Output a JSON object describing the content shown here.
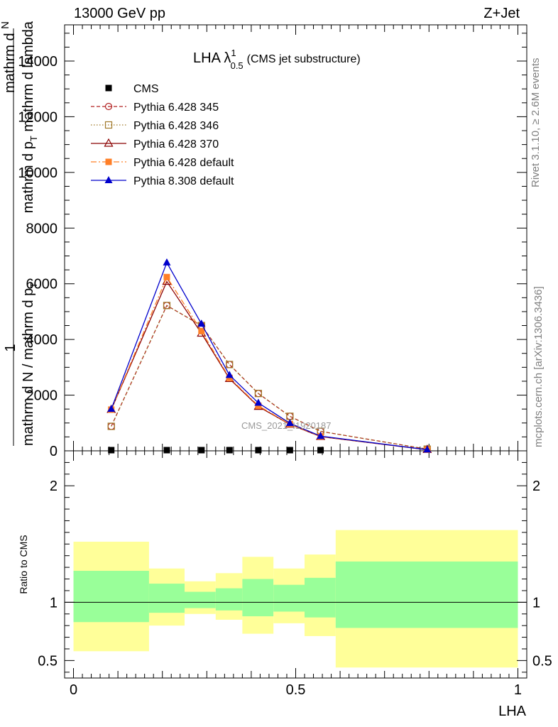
{
  "header": {
    "energy_label": "13000 GeV pp",
    "process_label": "Z+Jet"
  },
  "side": {
    "rivet_label": "Rivet 3.1.10, ≥ 2.6M events",
    "mcplots_label": "mcplots.cern.ch [arXiv:1306.3436]"
  },
  "watermark": "CMS_2021_I1920187",
  "colors": {
    "band_inner": "#99ff99",
    "band_outer": "#ffff99",
    "cms": "#000000",
    "p345": "#b22222",
    "p346": "#a07828",
    "p370": "#8b0000",
    "p6def": "#ff7f27",
    "p8def": "#0000cc"
  },
  "chart_data": {
    "type": "line",
    "title": "LHA λ",
    "title_sup": "1",
    "title_sub": "0.5",
    "title_suffix": "(CMS jet substructure)",
    "xlabel": "LHA",
    "ylabel_top_line1": "mathrm d",
    "ylabel_top_line2": "N",
    "ylabel_top_line3": "mathrm d p",
    "ylabel_top_line4": "T",
    "ylabel_top_line5": "mathrm d lambda",
    "ylabel_bottom": "mathrm d N / mathrm d p",
    "ylabel_bottom_sub": "T",
    "ylabel_one": "1",
    "ratio_ylabel": "Ratio to CMS",
    "xlim": [
      -0.02,
      1.02
    ],
    "ylim": [
      0,
      15300
    ],
    "ratio_ylim": [
      0.35,
      2.3
    ],
    "x_ticks": [
      {
        "v": 0,
        "label": "0"
      },
      {
        "v": 0.5,
        "label": "0.5"
      },
      {
        "v": 1,
        "label": "1"
      }
    ],
    "y_ticks": [
      {
        "v": 0,
        "label": "0"
      },
      {
        "v": 2000,
        "label": "2000"
      },
      {
        "v": 4000,
        "label": "4000"
      },
      {
        "v": 6000,
        "label": "6000"
      },
      {
        "v": 8000,
        "label": "8000"
      },
      {
        "v": 10000,
        "label": "10000"
      },
      {
        "v": 12000,
        "label": "12000"
      },
      {
        "v": 14000,
        "label": "14000"
      }
    ],
    "ratio_ticks": [
      {
        "v": 0.5,
        "label": "0.5"
      },
      {
        "v": 1,
        "label": "1"
      },
      {
        "v": 2,
        "label": "2"
      }
    ],
    "x": [
      0.085,
      0.21,
      0.288,
      0.351,
      0.416,
      0.487,
      0.556,
      0.796
    ],
    "bin_edges": [
      0,
      0.17,
      0.25,
      0.32,
      0.38,
      0.45,
      0.52,
      0.59,
      1.0
    ],
    "series": [
      {
        "name": "CMS",
        "key": "cms",
        "style": "cms",
        "values": [
          25,
          25,
          25,
          25,
          25,
          25,
          25,
          10
        ]
      },
      {
        "name": "Pythia 6.428 345",
        "key": "p345",
        "style": "circle-dashed",
        "values": [
          880,
          5220,
          4500,
          3100,
          2060,
          1240,
          700,
          60
        ]
      },
      {
        "name": "Pythia 6.428 346",
        "key": "p346",
        "style": "square-dotted",
        "values": [
          880,
          5220,
          4500,
          3100,
          2060,
          1240,
          700,
          60
        ]
      },
      {
        "name": "Pythia 6.428 370",
        "key": "p370",
        "style": "triangle-open",
        "values": [
          1480,
          6080,
          4220,
          2590,
          1590,
          950,
          510,
          40
        ]
      },
      {
        "name": "Pythia 6.428 default",
        "key": "p6def",
        "style": "square-dashdot",
        "values": [
          1480,
          6240,
          4300,
          2620,
          1620,
          960,
          520,
          40
        ]
      },
      {
        "name": "Pythia 8.308 default",
        "key": "p8def",
        "style": "triangle-filled",
        "values": [
          1500,
          6760,
          4560,
          2720,
          1720,
          990,
          530,
          40
        ]
      }
    ],
    "ratio_bands": [
      {
        "lo": 0.0,
        "hi": 0.17,
        "inner": [
          0.83,
          1.27
        ],
        "outer": [
          0.58,
          1.52
        ]
      },
      {
        "lo": 0.17,
        "hi": 0.25,
        "inner": [
          0.91,
          1.16
        ],
        "outer": [
          0.8,
          1.29
        ]
      },
      {
        "lo": 0.25,
        "hi": 0.32,
        "inner": [
          0.95,
          1.09
        ],
        "outer": [
          0.9,
          1.18
        ]
      },
      {
        "lo": 0.32,
        "hi": 0.38,
        "inner": [
          0.93,
          1.12
        ],
        "outer": [
          0.85,
          1.25
        ]
      },
      {
        "lo": 0.38,
        "hi": 0.45,
        "inner": [
          0.88,
          1.2
        ],
        "outer": [
          0.73,
          1.39
        ]
      },
      {
        "lo": 0.45,
        "hi": 0.52,
        "inner": [
          0.92,
          1.15
        ],
        "outer": [
          0.82,
          1.29
        ]
      },
      {
        "lo": 0.52,
        "hi": 0.59,
        "inner": [
          0.87,
          1.21
        ],
        "outer": [
          0.71,
          1.41
        ]
      },
      {
        "lo": 0.59,
        "hi": 1.0,
        "inner": [
          0.78,
          1.35
        ],
        "outer": [
          0.44,
          1.62
        ]
      }
    ],
    "legend_position": "top-left",
    "grid": false
  }
}
